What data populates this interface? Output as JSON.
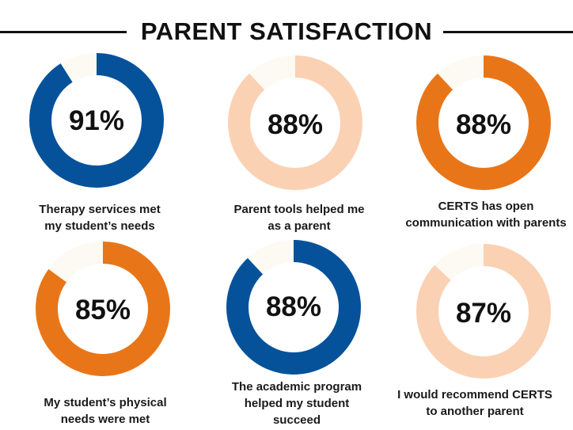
{
  "title": "PARENT SATISFACTION",
  "colors": {
    "track": "#fdf9f3",
    "blue": "#05529a",
    "orange": "#e87619",
    "peach": "#fbd1b4"
  },
  "chart_data": {
    "type": "pie",
    "variant": "donut",
    "title": "PARENT SATISFACTION",
    "unit": "%",
    "series": [
      {
        "label": "Therapy services met my student’s needs",
        "value": 91,
        "display": "91%",
        "color": "#05529a"
      },
      {
        "label": "Parent tools helped me as a parent",
        "value": 88,
        "display": "88%",
        "color": "#fbd1b4"
      },
      {
        "label": "CERTS has open communication with parents",
        "value": 88,
        "display": "88%",
        "color": "#e87619"
      },
      {
        "label": "My student’s physical needs were met",
        "value": 85,
        "display": "85%",
        "color": "#e87619"
      },
      {
        "label": "The academic program helped my student succeed",
        "value": 88,
        "display": "88%",
        "color": "#05529a"
      },
      {
        "label": "I would recommend CERTS to another parent",
        "value": 87,
        "display": "87%",
        "color": "#fbd1b4"
      }
    ],
    "captions": [
      [
        "Therapy services met",
        "my student’s needs"
      ],
      [
        "Parent tools helped me",
        "as a parent"
      ],
      [
        "CERTS has open",
        "communication with parents"
      ],
      [
        "My student’s physical",
        "needs were met"
      ],
      [
        "The academic program",
        "helped my student",
        "succeed"
      ],
      [
        "I would recommend CERTS",
        "to another parent"
      ]
    ]
  }
}
